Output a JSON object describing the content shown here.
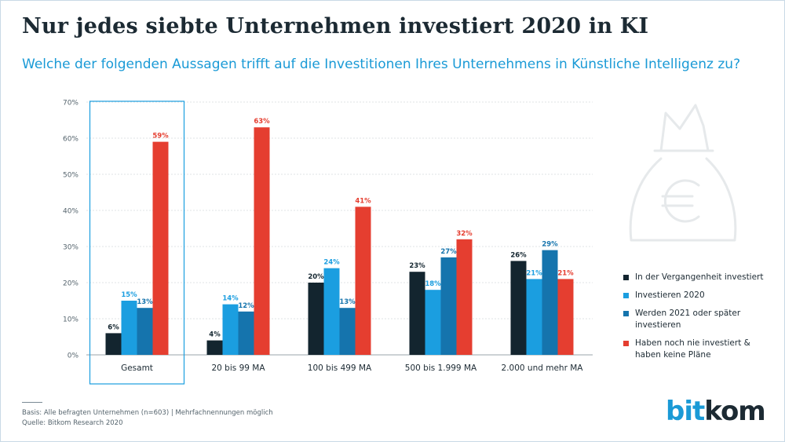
{
  "header": {
    "title": "Nur jedes siebte Unternehmen investiert 2020 in KI",
    "subtitle": "Welche der folgenden Aussagen trifft auf die Investitionen Ihres Unternehmens in Künstliche Intelligenz zu?"
  },
  "chart_data": {
    "type": "bar",
    "categories": [
      "Gesamt",
      "20 bis 99 MA",
      "100 bis 499 MA",
      "500 bis 1.999 MA",
      "2.000 und mehr MA"
    ],
    "highlighted_category": "Gesamt",
    "ylim": [
      0,
      70
    ],
    "yticks": [
      "0%",
      "10%",
      "20%",
      "30%",
      "40%",
      "50%",
      "60%",
      "70%"
    ],
    "grid": true,
    "legend_position": "right",
    "value_suffix": "%",
    "series": [
      {
        "name": "In der Vergangenheit investiert",
        "color": "#13252f",
        "label_color": "#13252f",
        "values": [
          6,
          4,
          20,
          23,
          26
        ]
      },
      {
        "name": "Investieren 2020",
        "color": "#1b9ee0",
        "label_color": "#1b9ee0",
        "values": [
          15,
          14,
          24,
          18,
          21
        ]
      },
      {
        "name": "Werden 2021 oder später investieren",
        "color": "#1574ad",
        "label_color": "#1574ad",
        "values": [
          13,
          12,
          13,
          27,
          29
        ]
      },
      {
        "name": "Haben noch nie investiert & haben keine Pläne",
        "color": "#e53e30",
        "label_color": "#e53e30",
        "values": [
          59,
          63,
          41,
          32,
          21
        ]
      }
    ]
  },
  "footer": {
    "basis": "Basis: Alle befragten Unternehmen (n=603) | Mehrfachnennungen möglich",
    "source": "Quelle: Bitkom Research 2020"
  },
  "logo": {
    "part1": "bit",
    "part2": "kom"
  },
  "icons": {
    "decoration": "money-bag-euro-icon"
  }
}
